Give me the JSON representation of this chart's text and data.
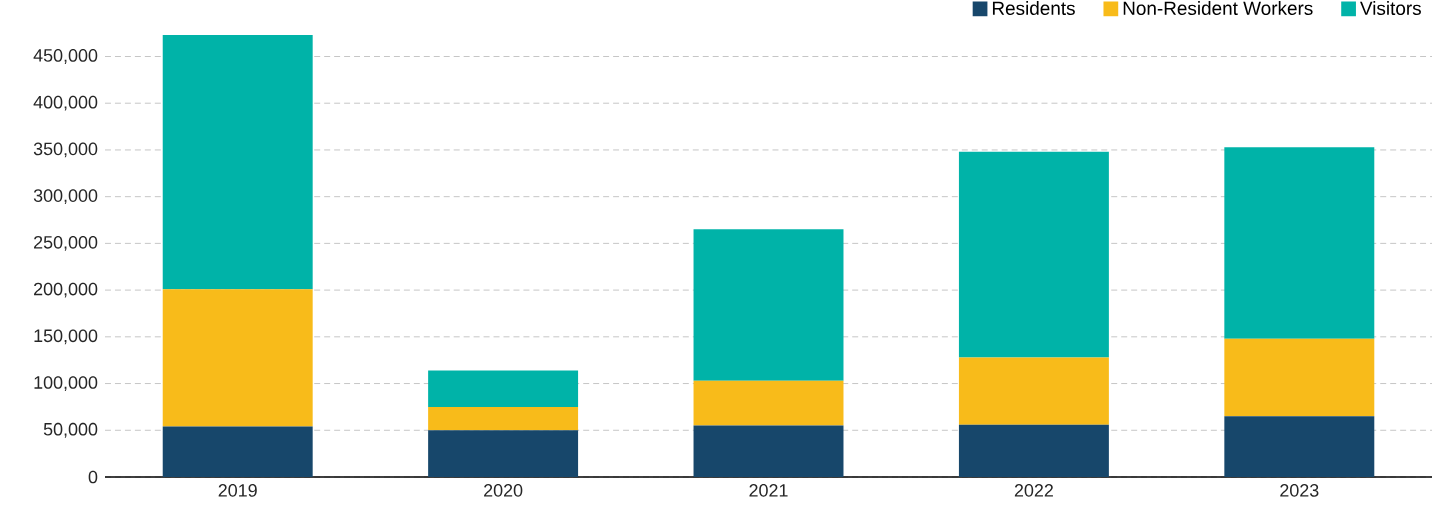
{
  "chart_data": {
    "type": "bar",
    "stacked": true,
    "categories": [
      "2019",
      "2020",
      "2021",
      "2022",
      "2023"
    ],
    "series": [
      {
        "name": "Residents",
        "color": "#17476b",
        "values": [
          54000,
          50000,
          55000,
          56000,
          65000
        ]
      },
      {
        "name": "Non-Resident Workers",
        "color": "#f8bb1a",
        "values": [
          147000,
          25000,
          48000,
          72000,
          83000
        ]
      },
      {
        "name": "Visitors",
        "color": "#00b3a8",
        "values": [
          272000,
          39000,
          162000,
          220000,
          205000
        ]
      }
    ],
    "yticks": [
      0,
      {
        "value": 50000,
        "label": "50,000"
      },
      {
        "value": 100000,
        "label": "100,000"
      },
      {
        "value": 150000,
        "label": "150,000"
      },
      {
        "value": 200000,
        "label": "200,000"
      },
      {
        "value": 250000,
        "label": "250,000"
      },
      {
        "value": 300000,
        "label": "300,000"
      },
      {
        "value": 350000,
        "label": "350,000"
      },
      {
        "value": 400000,
        "label": "400,000"
      },
      {
        "value": 450000,
        "label": "450,000"
      }
    ],
    "ylim": [
      0,
      473000
    ],
    "grid": "y",
    "legend": "top right"
  }
}
